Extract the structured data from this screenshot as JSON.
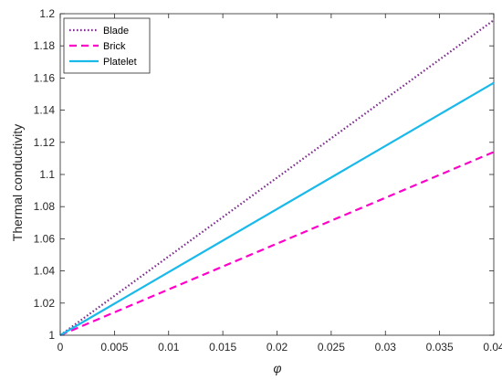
{
  "chart_data": {
    "type": "line",
    "title": "",
    "xlabel": "φ",
    "ylabel": "Thermal conductivity",
    "xlim": [
      0,
      0.04
    ],
    "ylim": [
      1,
      1.2
    ],
    "x_ticks": [
      "0",
      "0.005",
      "0.01",
      "0.015",
      "0.02",
      "0.025",
      "0.03",
      "0.035",
      "0.04"
    ],
    "y_ticks": [
      "1",
      "1.02",
      "1.04",
      "1.06",
      "1.08",
      "1.1",
      "1.12",
      "1.14",
      "1.16",
      "1.18",
      "1.2"
    ],
    "grid": false,
    "legend_position": "top-left",
    "series": [
      {
        "name": "Blade",
        "color": "#7E2F8E",
        "style": "dotted",
        "x": [
          0,
          0.04
        ],
        "y": [
          1,
          1.196
        ]
      },
      {
        "name": "Brick",
        "color": "#FF00C8",
        "style": "dashed",
        "x": [
          0,
          0.04
        ],
        "y": [
          1,
          1.114
        ]
      },
      {
        "name": "Platelet",
        "color": "#19B9EA",
        "style": "solid",
        "x": [
          0,
          0.04
        ],
        "y": [
          1,
          1.157
        ]
      }
    ]
  }
}
